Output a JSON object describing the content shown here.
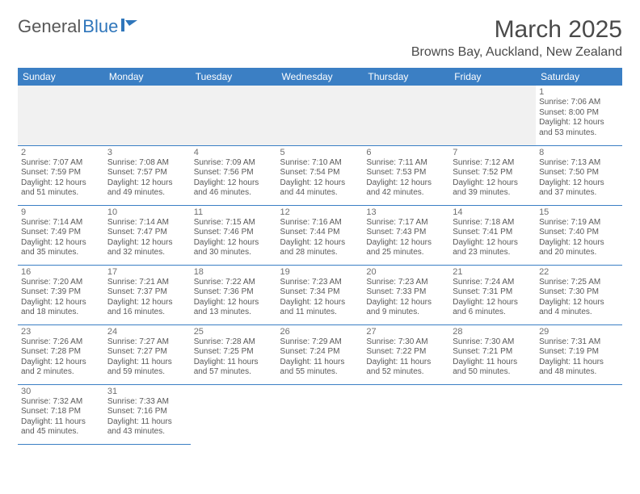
{
  "logo": {
    "text_general": "General",
    "text_blue": "Blue"
  },
  "title": "March 2025",
  "location": "Browns Bay, Auckland, New Zealand",
  "day_headers": [
    "Sunday",
    "Monday",
    "Tuesday",
    "Wednesday",
    "Thursday",
    "Friday",
    "Saturday"
  ],
  "colors": {
    "header_bg": "#3b7fc4",
    "header_text": "#ffffff",
    "cell_border": "#3b7fc4",
    "empty_bg": "#f1f1f1",
    "body_text": "#595959",
    "logo_gray": "#575757",
    "logo_blue": "#2f76bb"
  },
  "weeks": [
    [
      {
        "empty": true
      },
      {
        "empty": true
      },
      {
        "empty": true
      },
      {
        "empty": true
      },
      {
        "empty": true
      },
      {
        "empty": true
      },
      {
        "num": "1",
        "sunrise": "Sunrise: 7:06 AM",
        "sunset": "Sunset: 8:00 PM",
        "day1": "Daylight: 12 hours",
        "day2": "and 53 minutes."
      }
    ],
    [
      {
        "num": "2",
        "sunrise": "Sunrise: 7:07 AM",
        "sunset": "Sunset: 7:59 PM",
        "day1": "Daylight: 12 hours",
        "day2": "and 51 minutes."
      },
      {
        "num": "3",
        "sunrise": "Sunrise: 7:08 AM",
        "sunset": "Sunset: 7:57 PM",
        "day1": "Daylight: 12 hours",
        "day2": "and 49 minutes."
      },
      {
        "num": "4",
        "sunrise": "Sunrise: 7:09 AM",
        "sunset": "Sunset: 7:56 PM",
        "day1": "Daylight: 12 hours",
        "day2": "and 46 minutes."
      },
      {
        "num": "5",
        "sunrise": "Sunrise: 7:10 AM",
        "sunset": "Sunset: 7:54 PM",
        "day1": "Daylight: 12 hours",
        "day2": "and 44 minutes."
      },
      {
        "num": "6",
        "sunrise": "Sunrise: 7:11 AM",
        "sunset": "Sunset: 7:53 PM",
        "day1": "Daylight: 12 hours",
        "day2": "and 42 minutes."
      },
      {
        "num": "7",
        "sunrise": "Sunrise: 7:12 AM",
        "sunset": "Sunset: 7:52 PM",
        "day1": "Daylight: 12 hours",
        "day2": "and 39 minutes."
      },
      {
        "num": "8",
        "sunrise": "Sunrise: 7:13 AM",
        "sunset": "Sunset: 7:50 PM",
        "day1": "Daylight: 12 hours",
        "day2": "and 37 minutes."
      }
    ],
    [
      {
        "num": "9",
        "sunrise": "Sunrise: 7:14 AM",
        "sunset": "Sunset: 7:49 PM",
        "day1": "Daylight: 12 hours",
        "day2": "and 35 minutes."
      },
      {
        "num": "10",
        "sunrise": "Sunrise: 7:14 AM",
        "sunset": "Sunset: 7:47 PM",
        "day1": "Daylight: 12 hours",
        "day2": "and 32 minutes."
      },
      {
        "num": "11",
        "sunrise": "Sunrise: 7:15 AM",
        "sunset": "Sunset: 7:46 PM",
        "day1": "Daylight: 12 hours",
        "day2": "and 30 minutes."
      },
      {
        "num": "12",
        "sunrise": "Sunrise: 7:16 AM",
        "sunset": "Sunset: 7:44 PM",
        "day1": "Daylight: 12 hours",
        "day2": "and 28 minutes."
      },
      {
        "num": "13",
        "sunrise": "Sunrise: 7:17 AM",
        "sunset": "Sunset: 7:43 PM",
        "day1": "Daylight: 12 hours",
        "day2": "and 25 minutes."
      },
      {
        "num": "14",
        "sunrise": "Sunrise: 7:18 AM",
        "sunset": "Sunset: 7:41 PM",
        "day1": "Daylight: 12 hours",
        "day2": "and 23 minutes."
      },
      {
        "num": "15",
        "sunrise": "Sunrise: 7:19 AM",
        "sunset": "Sunset: 7:40 PM",
        "day1": "Daylight: 12 hours",
        "day2": "and 20 minutes."
      }
    ],
    [
      {
        "num": "16",
        "sunrise": "Sunrise: 7:20 AM",
        "sunset": "Sunset: 7:39 PM",
        "day1": "Daylight: 12 hours",
        "day2": "and 18 minutes."
      },
      {
        "num": "17",
        "sunrise": "Sunrise: 7:21 AM",
        "sunset": "Sunset: 7:37 PM",
        "day1": "Daylight: 12 hours",
        "day2": "and 16 minutes."
      },
      {
        "num": "18",
        "sunrise": "Sunrise: 7:22 AM",
        "sunset": "Sunset: 7:36 PM",
        "day1": "Daylight: 12 hours",
        "day2": "and 13 minutes."
      },
      {
        "num": "19",
        "sunrise": "Sunrise: 7:23 AM",
        "sunset": "Sunset: 7:34 PM",
        "day1": "Daylight: 12 hours",
        "day2": "and 11 minutes."
      },
      {
        "num": "20",
        "sunrise": "Sunrise: 7:23 AM",
        "sunset": "Sunset: 7:33 PM",
        "day1": "Daylight: 12 hours",
        "day2": "and 9 minutes."
      },
      {
        "num": "21",
        "sunrise": "Sunrise: 7:24 AM",
        "sunset": "Sunset: 7:31 PM",
        "day1": "Daylight: 12 hours",
        "day2": "and 6 minutes."
      },
      {
        "num": "22",
        "sunrise": "Sunrise: 7:25 AM",
        "sunset": "Sunset: 7:30 PM",
        "day1": "Daylight: 12 hours",
        "day2": "and 4 minutes."
      }
    ],
    [
      {
        "num": "23",
        "sunrise": "Sunrise: 7:26 AM",
        "sunset": "Sunset: 7:28 PM",
        "day1": "Daylight: 12 hours",
        "day2": "and 2 minutes."
      },
      {
        "num": "24",
        "sunrise": "Sunrise: 7:27 AM",
        "sunset": "Sunset: 7:27 PM",
        "day1": "Daylight: 11 hours",
        "day2": "and 59 minutes."
      },
      {
        "num": "25",
        "sunrise": "Sunrise: 7:28 AM",
        "sunset": "Sunset: 7:25 PM",
        "day1": "Daylight: 11 hours",
        "day2": "and 57 minutes."
      },
      {
        "num": "26",
        "sunrise": "Sunrise: 7:29 AM",
        "sunset": "Sunset: 7:24 PM",
        "day1": "Daylight: 11 hours",
        "day2": "and 55 minutes."
      },
      {
        "num": "27",
        "sunrise": "Sunrise: 7:30 AM",
        "sunset": "Sunset: 7:22 PM",
        "day1": "Daylight: 11 hours",
        "day2": "and 52 minutes."
      },
      {
        "num": "28",
        "sunrise": "Sunrise: 7:30 AM",
        "sunset": "Sunset: 7:21 PM",
        "day1": "Daylight: 11 hours",
        "day2": "and 50 minutes."
      },
      {
        "num": "29",
        "sunrise": "Sunrise: 7:31 AM",
        "sunset": "Sunset: 7:19 PM",
        "day1": "Daylight: 11 hours",
        "day2": "and 48 minutes."
      }
    ],
    [
      {
        "num": "30",
        "sunrise": "Sunrise: 7:32 AM",
        "sunset": "Sunset: 7:18 PM",
        "day1": "Daylight: 11 hours",
        "day2": "and 45 minutes."
      },
      {
        "num": "31",
        "sunrise": "Sunrise: 7:33 AM",
        "sunset": "Sunset: 7:16 PM",
        "day1": "Daylight: 11 hours",
        "day2": "and 43 minutes."
      },
      {
        "empty": true,
        "noborder": true
      },
      {
        "empty": true,
        "noborder": true
      },
      {
        "empty": true,
        "noborder": true
      },
      {
        "empty": true,
        "noborder": true
      },
      {
        "empty": true,
        "noborder": true
      }
    ]
  ]
}
